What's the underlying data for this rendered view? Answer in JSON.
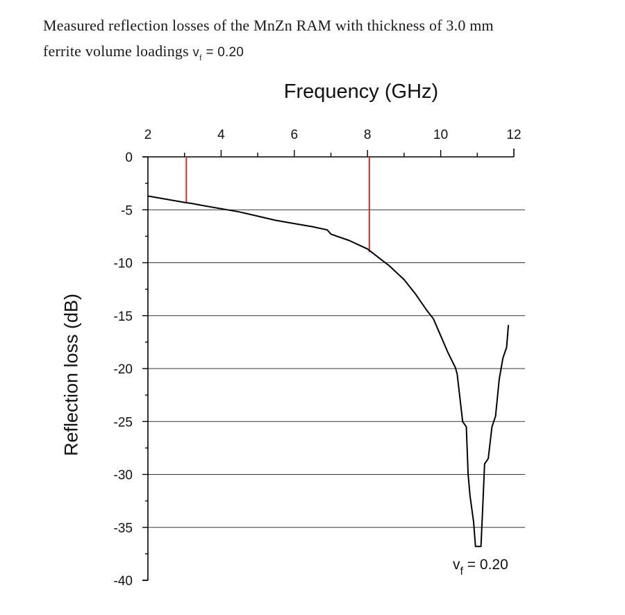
{
  "caption": {
    "line1": "Measured  reflection  losses  of  the MnZn RAM  with  thickness of 3.0 mm",
    "line2_prefix": "ferrite volume loadings ",
    "line2_var": "v",
    "line2_sub": "f",
    "line2_suffix": " = 0.20"
  },
  "chart_data": {
    "type": "line",
    "title": "",
    "xlabel": "Frequency (GHz)",
    "ylabel": "Reflection loss (dB)",
    "xlim": [
      2,
      12
    ],
    "ylim": [
      -40,
      0
    ],
    "x_axis_position": "top",
    "x_ticks": [
      2,
      4,
      6,
      8,
      10,
      12
    ],
    "y_ticks": [
      0,
      -5,
      -10,
      -15,
      -20,
      -25,
      -30,
      -35,
      -40
    ],
    "grid": "horizontal",
    "series": [
      {
        "color": "#000000",
        "x": [
          2.0,
          2.5,
          3.0,
          3.2,
          3.5,
          4.0,
          4.5,
          5.0,
          5.5,
          6.0,
          6.5,
          6.9,
          7.0,
          7.5,
          8.0,
          8.3,
          8.6,
          9.0,
          9.3,
          9.6,
          9.8,
          10.0,
          10.2,
          10.4,
          10.45,
          10.6,
          10.7,
          10.75,
          10.8,
          10.9,
          10.95,
          11.1,
          11.15,
          11.2,
          11.3,
          11.4,
          11.5,
          11.6,
          11.7,
          11.8,
          11.85
        ],
        "y": [
          -3.7,
          -4.0,
          -4.3,
          -4.4,
          -4.6,
          -4.9,
          -5.2,
          -5.6,
          -6.0,
          -6.3,
          -6.6,
          -6.9,
          -7.3,
          -7.9,
          -8.7,
          -9.5,
          -10.3,
          -11.6,
          -12.9,
          -14.4,
          -15.3,
          -16.9,
          -18.5,
          -19.9,
          -20.5,
          -25.0,
          -25.5,
          -30.0,
          -32.0,
          -34.5,
          -36.8,
          -36.8,
          -33.0,
          -29.0,
          -28.5,
          -25.5,
          -24.5,
          -21.0,
          -19.0,
          -18.0,
          -15.9
        ]
      }
    ],
    "markers": [
      {
        "x": 3.05,
        "y_top": 0,
        "y_bottom": -4.3,
        "color": "#d42a2a"
      },
      {
        "x": 8.05,
        "y_top": 0,
        "y_bottom": -9.0,
        "color": "#d42a2a"
      }
    ],
    "annotation": {
      "text_var": "v",
      "text_sub": "f",
      "text_value": " = 0.20"
    }
  }
}
